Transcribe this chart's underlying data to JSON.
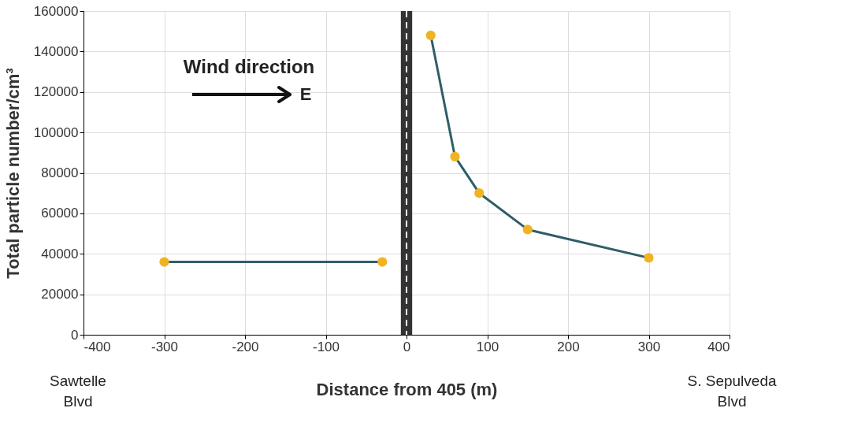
{
  "chart_data": {
    "type": "line",
    "xlabel": "Distance from 405 (m)",
    "ylabel": "Total particle number/cm³",
    "series": [
      {
        "x": [
          -300,
          -30
        ],
        "values": [
          36000,
          36000
        ],
        "color": "#2e5e66",
        "colors": [
          "#f0b323",
          "#f0b323"
        ]
      },
      {
        "x": [
          30,
          60,
          90,
          150,
          300
        ],
        "values": [
          148000,
          88000,
          70000,
          52000,
          38000
        ],
        "color": "#2e5e66",
        "colors": [
          "#f0b323",
          "#f0b323",
          "#f0b323",
          "#f0b323",
          "#f0b323"
        ]
      }
    ],
    "xlim": [
      -400,
      400
    ],
    "xticks": [
      -400,
      -300,
      -200,
      -100,
      0,
      100,
      200,
      300,
      400
    ],
    "ylim": [
      0,
      160000
    ],
    "yticks": [
      0,
      20000,
      40000,
      60000,
      80000,
      100000,
      120000,
      140000,
      160000
    ],
    "grid": true,
    "marker": "circle",
    "line_style": "solid",
    "bands": [
      {
        "axis": "x",
        "from": -7,
        "to": 7,
        "color": "#333333"
      }
    ],
    "ref_lines": [
      {
        "axis": "x",
        "value": 0,
        "color": "#ffffff",
        "line_style": "dashed"
      }
    ],
    "annotations": [
      "Wind direction",
      "E",
      "Sawtelle\nBlvd",
      "S. Sepulveda\nBlvd"
    ]
  }
}
